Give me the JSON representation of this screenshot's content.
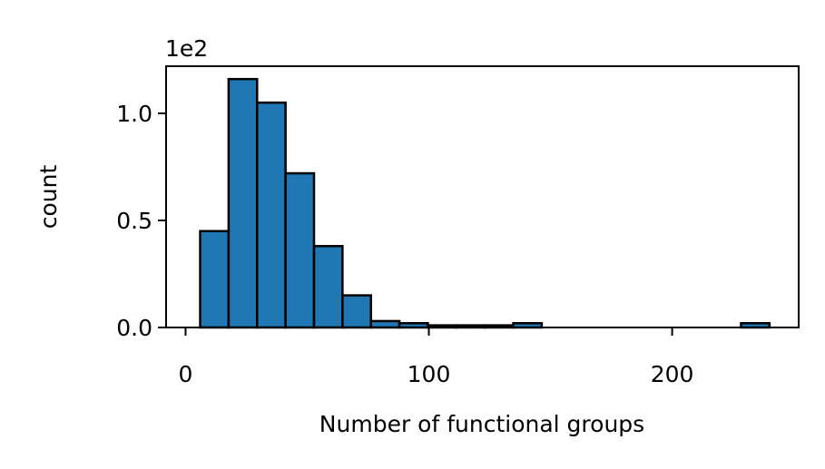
{
  "chart_data": {
    "type": "bar",
    "title": "",
    "xlabel": "Number of functional groups",
    "ylabel": "count",
    "y_offset_label": "1e2",
    "xlim": [
      -8,
      252
    ],
    "ylim": [
      0,
      1.22
    ],
    "x_ticks": [
      0,
      100,
      200
    ],
    "x_tick_labels": [
      "0",
      "100",
      "200"
    ],
    "y_ticks": [
      0.0,
      0.5,
      1.0
    ],
    "y_tick_labels": [
      "0.0",
      "0.5",
      "1.0"
    ],
    "bin_edges": [
      6,
      17.7,
      29.4,
      41.1,
      52.8,
      64.5,
      76.2,
      87.9,
      99.6,
      111.3,
      123.0,
      134.7,
      146.4,
      158.1,
      169.8,
      181.5,
      193.2,
      204.9,
      216.6,
      228.3,
      240
    ],
    "values": [
      0.45,
      1.16,
      1.05,
      0.72,
      0.38,
      0.15,
      0.03,
      0.02,
      0.01,
      0.01,
      0.01,
      0.02,
      0,
      0,
      0,
      0,
      0,
      0,
      0,
      0.02
    ],
    "grid": false,
    "colors": {
      "bar_fill": "#1f77b4",
      "bar_edge": "#000000",
      "axis": "#000000"
    }
  }
}
